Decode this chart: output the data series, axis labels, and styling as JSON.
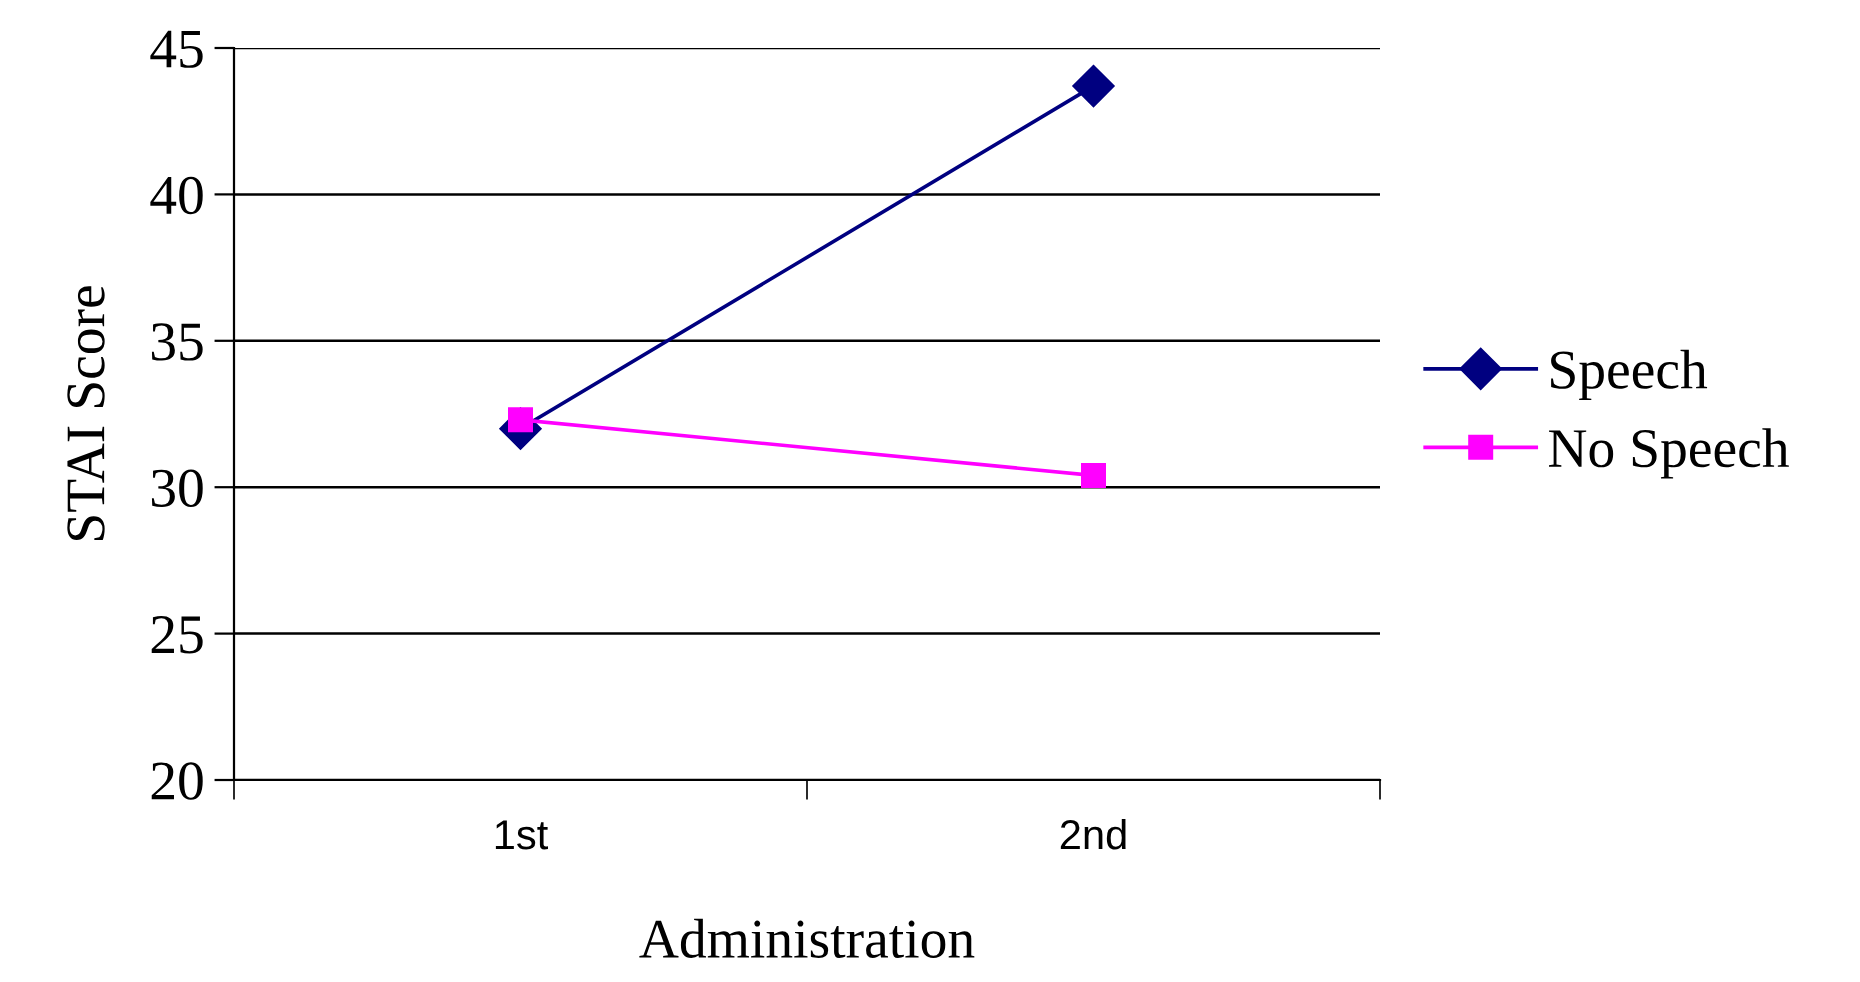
{
  "chart_data": {
    "type": "line",
    "xlabel": "Administration",
    "ylabel": "STAI Score",
    "categories": [
      "1st",
      "2nd"
    ],
    "series": [
      {
        "name": "Speech",
        "color": "#000080",
        "values": [
          32.0,
          43.7
        ],
        "marker": "diamond"
      },
      {
        "name": "No Speech",
        "color": "#ff00ff",
        "values": [
          32.3,
          30.4
        ],
        "marker": "square"
      }
    ],
    "ylim": [
      20,
      45
    ],
    "yticks": [
      20,
      25,
      30,
      35,
      40,
      45
    ],
    "grid": "y",
    "legend": "right"
  }
}
